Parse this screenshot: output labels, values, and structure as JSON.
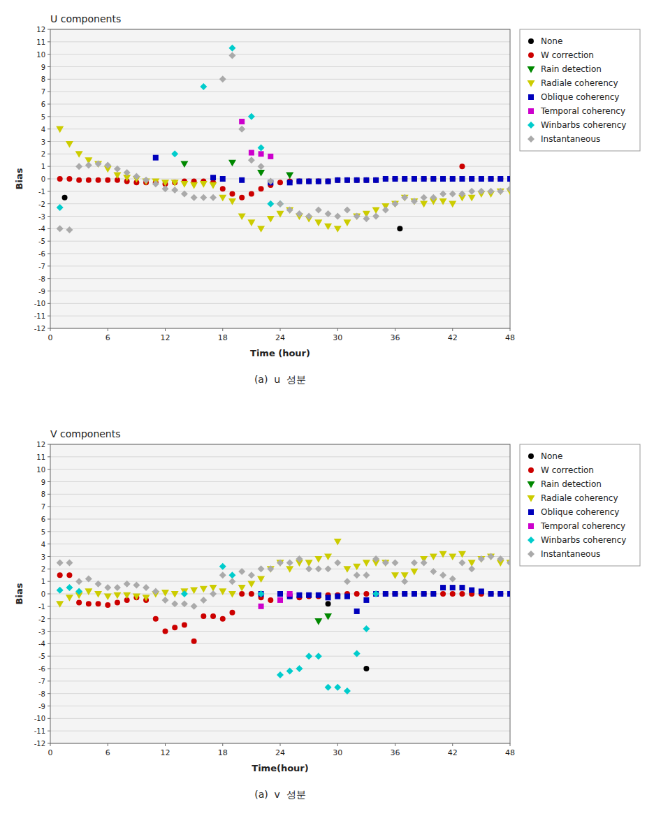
{
  "chart_data": [
    {
      "type": "scatter",
      "title": "U components",
      "x_label": "Time (hour)",
      "y_label": "Bias",
      "annotations": [
        "(a)  u  성분"
      ],
      "xlim": [
        0,
        48
      ],
      "ylim": [
        -12,
        12
      ],
      "xticks": [
        0,
        6,
        12,
        18,
        24,
        30,
        36,
        42,
        48
      ],
      "yticks": [
        -12,
        -11,
        -10,
        -9,
        -8,
        -7,
        -6,
        -5,
        -4,
        -3,
        -2,
        -1,
        0,
        1,
        2,
        3,
        4,
        5,
        6,
        7,
        8,
        9,
        10,
        11,
        12
      ],
      "grid": true,
      "legend": "right",
      "series": [
        {
          "name": "None",
          "color": "#000000",
          "marker": "circle",
          "x": [
            1.5,
            36.5
          ],
          "values": [
            -1.5,
            -4.0
          ]
        },
        {
          "name": "W correction",
          "color": "#cc0000",
          "marker": "circle",
          "x": [
            1,
            2,
            3,
            4,
            5,
            6,
            7,
            8,
            9,
            10,
            11,
            12,
            13,
            14,
            15,
            16,
            17,
            18,
            19,
            20,
            21,
            22,
            23,
            24,
            25,
            26,
            27,
            28,
            29,
            30,
            31,
            32,
            33,
            34,
            35,
            36,
            37,
            38,
            39,
            40,
            41,
            42,
            43,
            44,
            45,
            46,
            47,
            48
          ],
          "values": [
            0.0,
            0.0,
            -0.1,
            -0.1,
            -0.1,
            -0.1,
            -0.1,
            -0.2,
            -0.3,
            -0.3,
            -0.3,
            -0.4,
            -0.3,
            -0.2,
            -0.2,
            -0.2,
            -0.3,
            -0.8,
            -1.2,
            -1.5,
            -1.2,
            -0.8,
            -0.5,
            -0.3,
            -0.2,
            -0.2,
            -0.2,
            -0.2,
            -0.2,
            -0.1,
            -0.1,
            -0.1,
            -0.1,
            -0.1,
            0.0,
            0.0,
            0.0,
            0.0,
            0.0,
            0.0,
            0.0,
            0.0,
            1.0,
            0.0,
            0.0,
            0.0,
            0.0,
            0.0
          ]
        },
        {
          "name": "Rain detection",
          "color": "#008800",
          "marker": "triangle-down",
          "x": [
            14,
            19,
            22,
            25
          ],
          "values": [
            1.2,
            1.3,
            0.5,
            0.3
          ]
        },
        {
          "name": "Radiale coherency",
          "color": "#cccc00",
          "marker": "triangle-down",
          "x": [
            1,
            2,
            3,
            4,
            5,
            6,
            7,
            8,
            9,
            10,
            11,
            12,
            13,
            14,
            15,
            16,
            17,
            18,
            19,
            20,
            21,
            22,
            23,
            24,
            25,
            26,
            27,
            28,
            29,
            30,
            31,
            32,
            33,
            34,
            35,
            36,
            37,
            38,
            39,
            40,
            41,
            42,
            43,
            44,
            45,
            46,
            47,
            48
          ],
          "values": [
            4.0,
            2.8,
            2.0,
            1.5,
            1.2,
            0.8,
            0.3,
            0.1,
            0.0,
            -0.2,
            -0.2,
            -0.3,
            -0.3,
            -0.4,
            -0.5,
            -0.4,
            -0.5,
            -1.5,
            -1.8,
            -3.0,
            -3.5,
            -4.0,
            -3.2,
            -2.8,
            -2.5,
            -3.0,
            -3.2,
            -3.5,
            -3.8,
            -4.0,
            -3.5,
            -3.0,
            -2.8,
            -2.5,
            -2.2,
            -2.0,
            -1.5,
            -1.8,
            -2.0,
            -1.8,
            -1.8,
            -2.0,
            -1.5,
            -1.5,
            -1.2,
            -1.2,
            -1.0,
            -1.0
          ]
        },
        {
          "name": "Oblique coherency",
          "color": "#0000bb",
          "marker": "square",
          "x": [
            11,
            17,
            18,
            20,
            23,
            25,
            26,
            27,
            28,
            29,
            30,
            31,
            32,
            33,
            34,
            35,
            36,
            37,
            38,
            39,
            40,
            41,
            42,
            43,
            44,
            45,
            46,
            47,
            48
          ],
          "values": [
            1.7,
            0.1,
            0.0,
            -0.1,
            -0.3,
            -0.3,
            -0.2,
            -0.2,
            -0.2,
            -0.2,
            -0.1,
            -0.1,
            -0.1,
            -0.1,
            -0.1,
            0.0,
            0.0,
            0.0,
            0.0,
            0.0,
            0.0,
            0.0,
            0.0,
            0.0,
            0.0,
            0.0,
            0.0,
            0.0,
            0.0
          ]
        },
        {
          "name": "Temporal coherency",
          "color": "#cc00cc",
          "marker": "square",
          "x": [
            20,
            21,
            22,
            23
          ],
          "values": [
            4.6,
            2.1,
            2.0,
            1.8
          ]
        },
        {
          "name": "Winbarbs coherency",
          "color": "#00cccc",
          "marker": "diamond",
          "x": [
            1,
            13,
            16,
            19,
            21,
            22,
            23,
            24
          ],
          "values": [
            -2.3,
            2.0,
            7.4,
            10.5,
            5.0,
            2.5,
            -2.0,
            -2.0
          ]
        },
        {
          "name": "Instantaneous",
          "color": "#aaaaaa",
          "marker": "diamond",
          "x": [
            1,
            2,
            3,
            4,
            5,
            6,
            7,
            8,
            9,
            10,
            11,
            12,
            13,
            14,
            15,
            16,
            17,
            18,
            19,
            20,
            21,
            22,
            23,
            24,
            25,
            26,
            27,
            28,
            29,
            30,
            31,
            32,
            33,
            34,
            35,
            36,
            37,
            38,
            39,
            40,
            41,
            42,
            43,
            44,
            45,
            46,
            47,
            48
          ],
          "values": [
            -4.0,
            -4.1,
            1.0,
            1.1,
            1.2,
            1.1,
            0.8,
            0.5,
            0.2,
            -0.1,
            -0.4,
            -0.8,
            -0.9,
            -1.2,
            -1.5,
            -1.5,
            -1.5,
            8.0,
            9.9,
            4.0,
            1.5,
            1.0,
            -0.2,
            -2.0,
            -2.5,
            -2.8,
            -3.0,
            -2.5,
            -2.8,
            -3.0,
            -2.5,
            -3.0,
            -3.2,
            -3.0,
            -2.5,
            -2.0,
            -1.5,
            -1.8,
            -1.5,
            -1.5,
            -1.2,
            -1.2,
            -1.2,
            -1.0,
            -1.0,
            -1.0,
            -1.0,
            -0.8
          ]
        }
      ]
    },
    {
      "type": "scatter",
      "title": "V components",
      "x_label": "Time(hour)",
      "y_label": "Bias",
      "annotations": [
        "(a)  v  성분"
      ],
      "xlim": [
        0,
        48
      ],
      "ylim": [
        -12,
        12
      ],
      "xticks": [
        0,
        6,
        12,
        18,
        24,
        30,
        36,
        42,
        48
      ],
      "yticks": [
        -12,
        -11,
        -10,
        -9,
        -8,
        -7,
        -6,
        -5,
        -4,
        -3,
        -2,
        -1,
        0,
        1,
        2,
        3,
        4,
        5,
        6,
        7,
        8,
        9,
        10,
        11,
        12
      ],
      "grid": true,
      "legend": "right",
      "series": [
        {
          "name": "None",
          "color": "#000000",
          "marker": "circle",
          "x": [
            29,
            33
          ],
          "values": [
            -0.8,
            -6.0
          ]
        },
        {
          "name": "W correction",
          "color": "#cc0000",
          "marker": "circle",
          "x": [
            1,
            2,
            3,
            4,
            5,
            6,
            7,
            8,
            9,
            10,
            11,
            12,
            13,
            14,
            15,
            16,
            17,
            18,
            19,
            20,
            21,
            22,
            23,
            24,
            25,
            26,
            27,
            28,
            29,
            30,
            31,
            32,
            33,
            34,
            35,
            36,
            37,
            38,
            39,
            40,
            41,
            42,
            43,
            44,
            45,
            46,
            47,
            48
          ],
          "values": [
            1.5,
            1.5,
            -0.7,
            -0.8,
            -0.8,
            -0.9,
            -0.7,
            -0.5,
            -0.3,
            -0.5,
            -2.0,
            -3.0,
            -2.7,
            -2.5,
            -3.8,
            -1.8,
            -1.8,
            -2.0,
            -1.5,
            0.0,
            0.0,
            -0.3,
            -0.5,
            0.0,
            -0.2,
            -0.3,
            -0.2,
            -0.2,
            -0.1,
            -0.1,
            0.0,
            0.0,
            0.0,
            0.0,
            0.0,
            0.0,
            0.0,
            0.0,
            0.0,
            0.0,
            0.0,
            0.0,
            0.0,
            0.0,
            0.0,
            0.0,
            0.0,
            0.0
          ]
        },
        {
          "name": "Rain detection",
          "color": "#008800",
          "marker": "triangle-down",
          "x": [
            28,
            29
          ],
          "values": [
            -2.2,
            -1.8
          ]
        },
        {
          "name": "Radiale coherency",
          "color": "#cccc00",
          "marker": "triangle-down",
          "x": [
            1,
            2,
            3,
            4,
            5,
            6,
            7,
            8,
            9,
            10,
            11,
            12,
            13,
            14,
            15,
            16,
            17,
            18,
            19,
            20,
            21,
            22,
            23,
            24,
            25,
            26,
            27,
            28,
            29,
            30,
            31,
            32,
            33,
            34,
            35,
            36,
            37,
            38,
            39,
            40,
            41,
            42,
            43,
            44,
            45,
            46,
            47,
            48
          ],
          "values": [
            -0.8,
            -0.3,
            -0.1,
            0.2,
            0.0,
            -0.2,
            -0.1,
            -0.1,
            -0.2,
            -0.3,
            0.0,
            0.1,
            0.0,
            0.2,
            0.3,
            0.4,
            0.5,
            0.2,
            0.0,
            0.5,
            0.8,
            1.2,
            2.0,
            2.5,
            2.0,
            2.5,
            2.5,
            2.8,
            3.0,
            4.2,
            2.0,
            2.2,
            2.5,
            2.5,
            2.5,
            1.5,
            1.5,
            1.8,
            2.8,
            3.0,
            3.2,
            3.0,
            3.2,
            2.5,
            2.8,
            3.0,
            2.5,
            2.5
          ]
        },
        {
          "name": "Oblique coherency",
          "color": "#0000bb",
          "marker": "square",
          "x": [
            22,
            24,
            25,
            26,
            27,
            28,
            29,
            30,
            31,
            32,
            33,
            34,
            35,
            36,
            37,
            38,
            39,
            40,
            41,
            42,
            43,
            44,
            45,
            46,
            47,
            48
          ],
          "values": [
            0.0,
            0.0,
            -0.2,
            -0.1,
            -0.1,
            -0.1,
            -0.3,
            -0.2,
            -0.2,
            -1.4,
            -0.5,
            0.0,
            0.0,
            0.0,
            0.0,
            0.0,
            0.0,
            0.0,
            0.5,
            0.5,
            0.5,
            0.3,
            0.2,
            0.0,
            0.0,
            0.0
          ]
        },
        {
          "name": "Temporal coherency",
          "color": "#cc00cc",
          "marker": "square",
          "x": [
            22,
            24,
            25
          ],
          "values": [
            -1.0,
            -0.5,
            0.0
          ]
        },
        {
          "name": "Winbarbs coherency",
          "color": "#00cccc",
          "marker": "diamond",
          "x": [
            1,
            2,
            3,
            14,
            18,
            19,
            22,
            24,
            25,
            26,
            27,
            28,
            29,
            30,
            31,
            32,
            33,
            34
          ],
          "values": [
            0.3,
            0.5,
            0.2,
            0.0,
            2.2,
            1.5,
            0.0,
            -6.5,
            -6.2,
            -6.0,
            -5.0,
            -5.0,
            -7.5,
            -7.5,
            -7.8,
            -4.8,
            -2.8,
            0.0
          ]
        },
        {
          "name": "Instantaneous",
          "color": "#aaaaaa",
          "marker": "diamond",
          "x": [
            1,
            2,
            3,
            4,
            5,
            6,
            7,
            8,
            9,
            10,
            11,
            12,
            13,
            14,
            15,
            16,
            17,
            18,
            19,
            20,
            21,
            22,
            23,
            24,
            25,
            26,
            27,
            28,
            29,
            30,
            31,
            32,
            33,
            34,
            35,
            36,
            37,
            38,
            39,
            40,
            41,
            42,
            43,
            44,
            45,
            46,
            47,
            48
          ],
          "values": [
            2.5,
            2.5,
            1.0,
            1.2,
            0.8,
            0.5,
            0.5,
            0.8,
            0.7,
            0.5,
            0.2,
            -0.5,
            -0.8,
            -0.8,
            -1.0,
            -0.5,
            0.0,
            1.5,
            1.0,
            1.8,
            1.5,
            2.0,
            2.0,
            2.5,
            2.5,
            2.8,
            2.0,
            2.0,
            2.0,
            2.5,
            1.0,
            1.5,
            1.5,
            2.8,
            2.5,
            2.5,
            1.0,
            2.5,
            2.5,
            1.8,
            1.5,
            1.2,
            2.5,
            2.0,
            2.8,
            3.0,
            2.8,
            2.5
          ]
        }
      ]
    }
  ]
}
